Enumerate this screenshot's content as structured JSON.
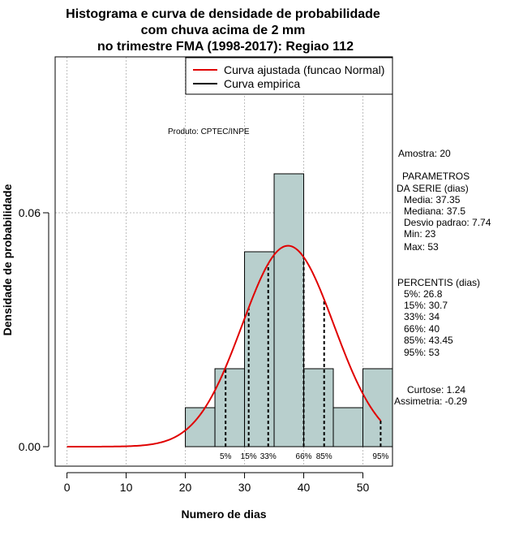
{
  "chart_data": {
    "type": "bar",
    "title_lines": [
      "Histograma e curva de densidade de probabilidade",
      "com chuva acima de 2 mm",
      "no trimestre FMA (1998-2017): Regiao 112"
    ],
    "xlabel": "Numero de dias",
    "ylabel": "Densidade de probabilidade",
    "xlim": [
      -2,
      55
    ],
    "ylim": [
      -0.005,
      0.1
    ],
    "x_ticks": [
      0,
      10,
      20,
      30,
      40,
      50
    ],
    "y_ticks": [
      0.0,
      0.06
    ],
    "y_tick_labels": [
      "0.00",
      "0.06"
    ],
    "grid_x": [
      0,
      10,
      20,
      30,
      40,
      50
    ],
    "grid_y": [
      0.06,
      0.1
    ],
    "bins": [
      {
        "x0": 20,
        "x1": 25,
        "density": 0.01
      },
      {
        "x0": 25,
        "x1": 30,
        "density": 0.02
      },
      {
        "x0": 30,
        "x1": 35,
        "density": 0.05
      },
      {
        "x0": 35,
        "x1": 40,
        "density": 0.07
      },
      {
        "x0": 40,
        "x1": 45,
        "density": 0.02
      },
      {
        "x0": 45,
        "x1": 50,
        "density": 0.01
      },
      {
        "x0": 50,
        "x1": 55,
        "density": 0.02
      }
    ],
    "bar_fill": "#b8cfcd",
    "normal_curve": {
      "mean": 37.35,
      "sd": 7.74,
      "x_from": 0,
      "x_to": 53,
      "color": "#e00000"
    },
    "percentile_lines": [
      {
        "x": 26.8,
        "label": "5%"
      },
      {
        "x": 30.7,
        "label": "15%"
      },
      {
        "x": 34,
        "label": "33%"
      },
      {
        "x": 40,
        "label": "66%"
      },
      {
        "x": 43.45,
        "label": "85%"
      },
      {
        "x": 53,
        "label": "95%"
      }
    ],
    "legend": [
      {
        "label": "Curva ajustada (funcao Normal)",
        "color": "#e00000"
      },
      {
        "label": "Curva empirica",
        "color": "#000000"
      }
    ],
    "legend_position": "top-right"
  },
  "product_label": "Produto: CPTEC/INPE",
  "stats": {
    "amostra": "Amostra: 20",
    "param_title_1": "PARAMETROS",
    "param_title_2": "DA SERIE (dias)",
    "params": [
      "Media: 37.35",
      "Mediana: 37.5",
      "Desvio padrao: 7.74",
      "Min: 23",
      "Max: 53"
    ],
    "percentis_title": "PERCENTIS (dias)",
    "percentis": [
      "5%: 26.8",
      "15%: 30.7",
      "33%: 34",
      "66%: 40",
      "85%: 43.45",
      "95%: 53"
    ],
    "curtose": "Curtose: 1.24",
    "assimetria": "Assimetria: -0.29"
  }
}
